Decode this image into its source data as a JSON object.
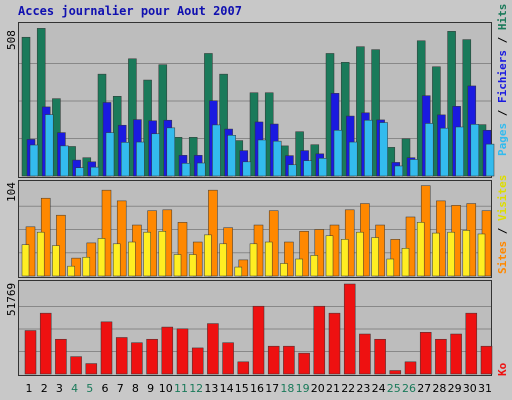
{
  "title": "Acces journalier pour Aout 2007",
  "legends": {
    "top": {
      "pages": "Pages",
      "sep1": " / ",
      "fichiers": "Fichiers",
      "sep2": " / ",
      "hits": "Hits"
    },
    "middle": {
      "sites": "Sites",
      "sep": " / ",
      "visites": "Visites"
    },
    "bottom": {
      "ko": "Ko"
    }
  },
  "colors": {
    "hits": "#1a7a5a",
    "fichiers": "#1a1ae0",
    "pages": "#33bbee",
    "visites": "#ff8800",
    "sites": "#ffee22",
    "ko": "#ee1111",
    "weekend_label": "#1a7a5a",
    "weekday_label": "#000000"
  },
  "chart_data": [
    {
      "type": "bar",
      "ymax_label": "508",
      "ylim": [
        0,
        508
      ],
      "categories": [
        "1",
        "2",
        "3",
        "4",
        "5",
        "6",
        "7",
        "8",
        "9",
        "10",
        "11",
        "12",
        "13",
        "14",
        "15",
        "16",
        "17",
        "18",
        "19",
        "20",
        "21",
        "22",
        "23",
        "24",
        "25",
        "26",
        "27",
        "28",
        "29",
        "30",
        "31"
      ],
      "series": [
        {
          "name": "Hits",
          "values": [
            470,
            500,
            262,
            100,
            62,
            345,
            270,
            397,
            325,
            377,
            131,
            131,
            415,
            345,
            120,
            282,
            282,
            102,
            150,
            106,
            415,
            385,
            438,
            428,
            97,
            126,
            458,
            370,
            490,
            462,
            174
          ]
        },
        {
          "name": "Fichiers",
          "values": [
            124,
            234,
            147,
            54,
            48,
            249,
            172,
            191,
            187,
            189,
            70,
            70,
            255,
            159,
            86,
            183,
            176,
            69,
            86,
            75,
            280,
            203,
            214,
            190,
            46,
            62,
            272,
            207,
            236,
            305,
            155
          ]
        },
        {
          "name": "Pages",
          "values": [
            105,
            208,
            102,
            28,
            30,
            147,
            114,
            115,
            143,
            163,
            43,
            44,
            173,
            138,
            48,
            122,
            118,
            38,
            52,
            60,
            155,
            115,
            189,
            181,
            34,
            56,
            178,
            162,
            166,
            175,
            108
          ]
        }
      ]
    },
    {
      "type": "bar",
      "ymax_label": "104",
      "ylim": [
        0,
        104
      ],
      "categories": [
        "1",
        "2",
        "3",
        "4",
        "5",
        "6",
        "7",
        "8",
        "9",
        "10",
        "11",
        "12",
        "13",
        "14",
        "15",
        "16",
        "17",
        "18",
        "19",
        "20",
        "21",
        "22",
        "23",
        "24",
        "25",
        "26",
        "27",
        "28",
        "29",
        "30",
        "31"
      ],
      "series": [
        {
          "name": "Visites",
          "values": [
            55,
            87,
            68,
            20,
            37,
            96,
            84,
            57,
            73,
            74,
            60,
            38,
            96,
            54,
            18,
            57,
            73,
            38,
            50,
            52,
            57,
            74,
            81,
            57,
            41,
            66,
            101,
            84,
            79,
            81,
            73
          ]
        },
        {
          "name": "Sites",
          "values": [
            35,
            49,
            34,
            11,
            21,
            42,
            36,
            38,
            49,
            50,
            24,
            24,
            46,
            36,
            10,
            36,
            38,
            14,
            19,
            23,
            45,
            41,
            49,
            43,
            19,
            31,
            60,
            48,
            49,
            51,
            47
          ]
        }
      ]
    },
    {
      "type": "bar",
      "ymax_label": "51769",
      "ylim": [
        0,
        51769
      ],
      "categories": [
        "1",
        "2",
        "3",
        "4",
        "5",
        "6",
        "7",
        "8",
        "9",
        "10",
        "11",
        "12",
        "13",
        "14",
        "15",
        "16",
        "17",
        "18",
        "19",
        "20",
        "21",
        "22",
        "23",
        "24",
        "25",
        "26",
        "27",
        "28",
        "29",
        "30",
        "31"
      ],
      "series": [
        {
          "name": "Ko",
          "values": [
            25000,
            35000,
            20000,
            10000,
            6000,
            30000,
            21000,
            18000,
            20000,
            27000,
            26000,
            15000,
            29000,
            18000,
            7000,
            39000,
            16000,
            16000,
            12000,
            39000,
            35000,
            51769,
            23000,
            20000,
            2000,
            7000,
            24000,
            20000,
            23000,
            35000,
            16000
          ]
        }
      ]
    }
  ]
}
